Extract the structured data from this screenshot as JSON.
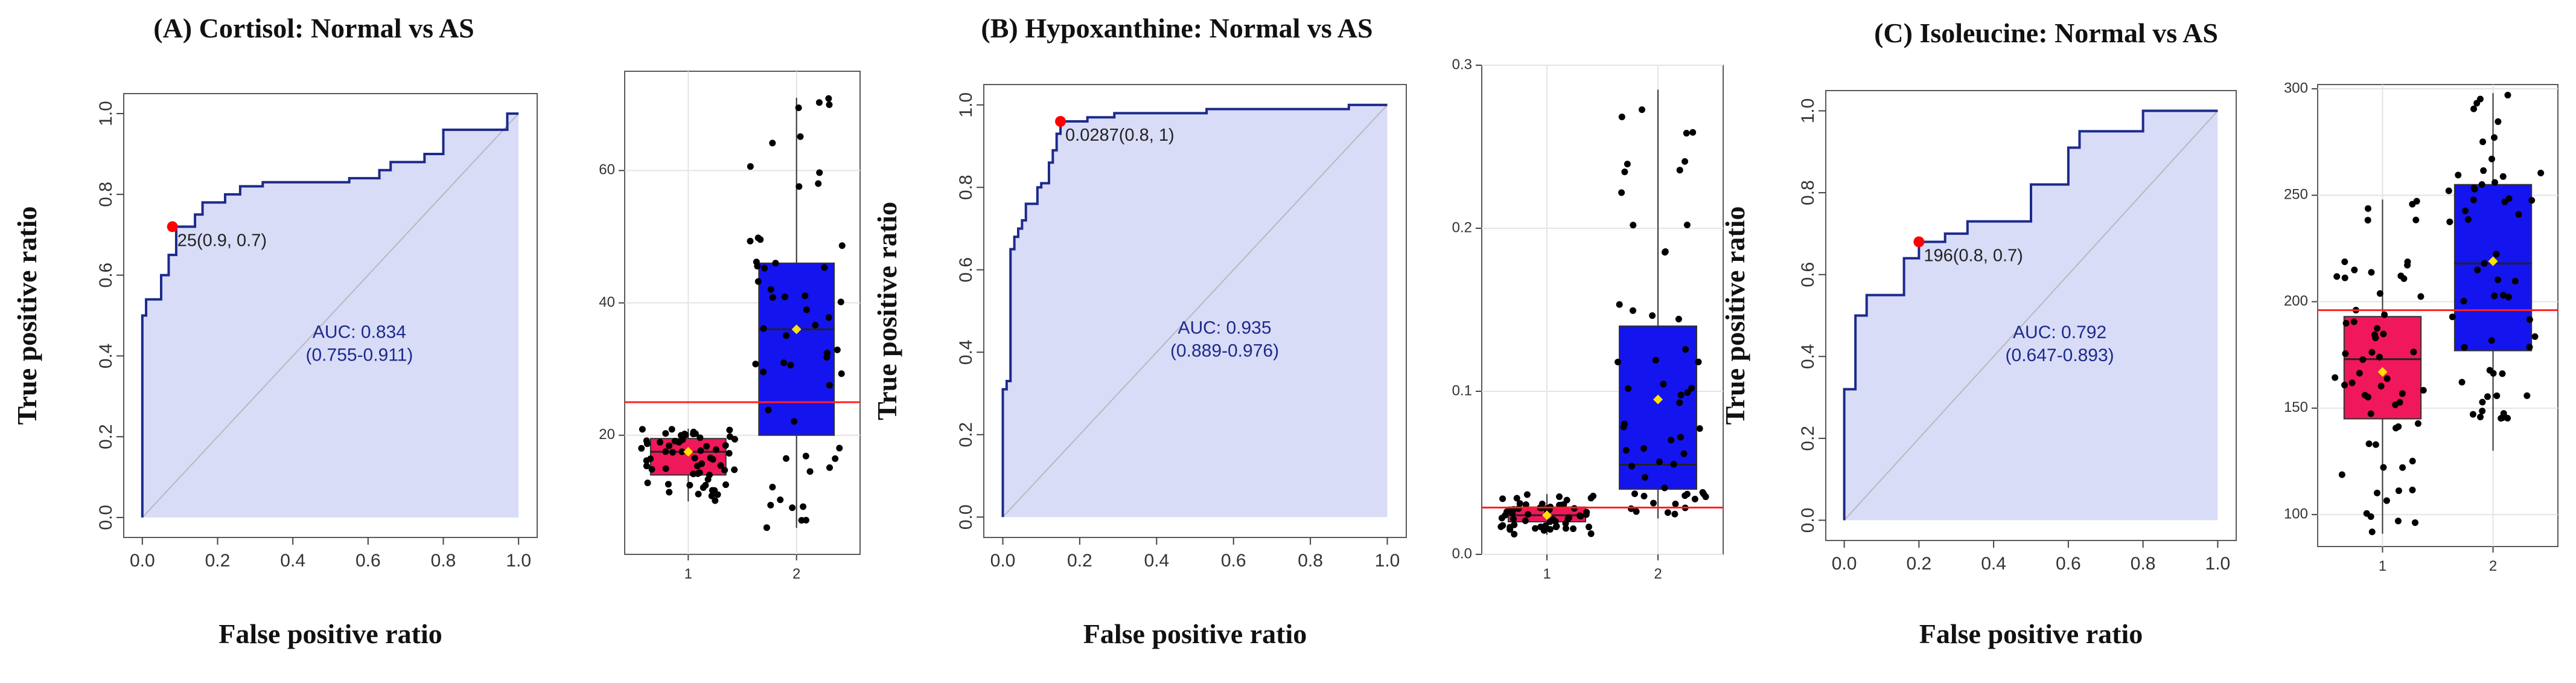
{
  "figure": {
    "roc_ylabel": "True positive ratio",
    "roc_xlabel": "False positive ratio",
    "colors": {
      "roc_line": "#1c2a8c",
      "roc_fill": "#d9dcf7",
      "diagonal": "#b9b9b9",
      "point": "#ff0000",
      "auc_text": "#1c2a8c",
      "box_group1": "#f0185a",
      "box_group2": "#1414ee",
      "cutoff_line": "#ff2020",
      "mean_marker": "#ffe000",
      "jitter": "#000000",
      "panel_border": "#5a5a5a",
      "box_grid": "#e4e4e4"
    }
  },
  "chart_data": [
    {
      "type": "line",
      "panel": "A",
      "title": "(A) Cortisol: Normal vs AS",
      "xlabel": "False positive ratio",
      "ylabel": "True positive ratio",
      "xlim": [
        0,
        1
      ],
      "ylim": [
        0,
        1
      ],
      "xticks": [
        "0.0",
        "0.2",
        "0.4",
        "0.6",
        "0.8",
        "1.0"
      ],
      "yticks": [
        "0.0",
        "0.2",
        "0.4",
        "0.6",
        "0.8",
        "1.0"
      ],
      "roc": [
        [
          0,
          0
        ],
        [
          0,
          0.5
        ],
        [
          0.01,
          0.5
        ],
        [
          0.01,
          0.54
        ],
        [
          0.05,
          0.54
        ],
        [
          0.05,
          0.6
        ],
        [
          0.07,
          0.6
        ],
        [
          0.07,
          0.65
        ],
        [
          0.09,
          0.65
        ],
        [
          0.09,
          0.72
        ],
        [
          0.14,
          0.72
        ],
        [
          0.14,
          0.75
        ],
        [
          0.16,
          0.75
        ],
        [
          0.16,
          0.78
        ],
        [
          0.22,
          0.78
        ],
        [
          0.22,
          0.8
        ],
        [
          0.26,
          0.8
        ],
        [
          0.26,
          0.82
        ],
        [
          0.32,
          0.82
        ],
        [
          0.32,
          0.83
        ],
        [
          0.55,
          0.83
        ],
        [
          0.55,
          0.84
        ],
        [
          0.63,
          0.84
        ],
        [
          0.63,
          0.86
        ],
        [
          0.66,
          0.86
        ],
        [
          0.66,
          0.88
        ],
        [
          0.75,
          0.88
        ],
        [
          0.75,
          0.9
        ],
        [
          0.8,
          0.9
        ],
        [
          0.8,
          0.96
        ],
        [
          0.97,
          0.96
        ],
        [
          0.97,
          1
        ],
        [
          1,
          1
        ]
      ],
      "cutoff_point": {
        "x": 0.08,
        "y": 0.72,
        "label": "25(0.9, 0.7)"
      },
      "auc_label": "AUC: 0.834",
      "auc_ci": "(0.755-0.911)",
      "boxplot": {
        "groups": [
          "1",
          "2"
        ],
        "yticks": [
          "20",
          "40",
          "60"
        ],
        "yrange": [
          2,
          75
        ],
        "cutoff": 25,
        "stats": [
          {
            "q1": 14,
            "median": 17.5,
            "q3": 19.5,
            "whisker_low": 10,
            "whisker_high": 21,
            "mean": 17.5
          },
          {
            "q1": 20,
            "median": 36,
            "q3": 46,
            "whisker_low": 6,
            "whisker_high": 71,
            "mean": 36
          }
        ]
      }
    },
    {
      "type": "line",
      "panel": "B",
      "title": "(B) Hypoxanthine: Normal vs AS",
      "xlabel": "False positive ratio",
      "ylabel": "True positive ratio",
      "xlim": [
        0,
        1
      ],
      "ylim": [
        0,
        1
      ],
      "xticks": [
        "0.0",
        "0.2",
        "0.4",
        "0.6",
        "0.8",
        "1.0"
      ],
      "yticks": [
        "0.0",
        "0.2",
        "0.4",
        "0.6",
        "0.8",
        "1.0"
      ],
      "roc": [
        [
          0,
          0
        ],
        [
          0,
          0.31
        ],
        [
          0.01,
          0.31
        ],
        [
          0.01,
          0.33
        ],
        [
          0.02,
          0.33
        ],
        [
          0.02,
          0.65
        ],
        [
          0.03,
          0.65
        ],
        [
          0.03,
          0.68
        ],
        [
          0.04,
          0.68
        ],
        [
          0.04,
          0.7
        ],
        [
          0.05,
          0.7
        ],
        [
          0.05,
          0.72
        ],
        [
          0.06,
          0.72
        ],
        [
          0.06,
          0.76
        ],
        [
          0.09,
          0.76
        ],
        [
          0.09,
          0.8
        ],
        [
          0.1,
          0.8
        ],
        [
          0.1,
          0.81
        ],
        [
          0.12,
          0.81
        ],
        [
          0.12,
          0.86
        ],
        [
          0.13,
          0.86
        ],
        [
          0.13,
          0.89
        ],
        [
          0.14,
          0.89
        ],
        [
          0.14,
          0.93
        ],
        [
          0.15,
          0.93
        ],
        [
          0.15,
          0.96
        ],
        [
          0.22,
          0.96
        ],
        [
          0.22,
          0.97
        ],
        [
          0.29,
          0.97
        ],
        [
          0.29,
          0.98
        ],
        [
          0.53,
          0.98
        ],
        [
          0.53,
          0.99
        ],
        [
          0.9,
          0.99
        ],
        [
          0.9,
          1
        ],
        [
          1,
          1
        ]
      ],
      "cutoff_point": {
        "x": 0.15,
        "y": 0.96,
        "label": "0.0287(0.8, 1)"
      },
      "auc_label": "AUC: 0.935",
      "auc_ci": "(0.889-0.976)",
      "boxplot": {
        "groups": [
          "1",
          "2"
        ],
        "yticks": [
          "0.0",
          "0.1",
          "0.2",
          "0.3"
        ],
        "yrange": [
          0,
          0.3
        ],
        "cutoff": 0.0287,
        "stats": [
          {
            "q1": 0.02,
            "median": 0.024,
            "q3": 0.029,
            "whisker_low": 0.012,
            "whisker_high": 0.037,
            "mean": 0.024
          },
          {
            "q1": 0.04,
            "median": 0.055,
            "q3": 0.14,
            "whisker_low": 0.022,
            "whisker_high": 0.285,
            "mean": 0.095
          }
        ]
      }
    },
    {
      "type": "line",
      "panel": "C",
      "title": "(C) Isoleucine: Normal vs AS",
      "xlabel": "False positive ratio",
      "ylabel": "True positive ratio",
      "xlim": [
        0,
        1
      ],
      "ylim": [
        0,
        1
      ],
      "xticks": [
        "0.0",
        "0.2",
        "0.4",
        "0.6",
        "0.8",
        "1.0"
      ],
      "yticks": [
        "0.0",
        "0.2",
        "0.4",
        "0.6",
        "0.8",
        "1.0"
      ],
      "roc": [
        [
          0,
          0
        ],
        [
          0,
          0.32
        ],
        [
          0.03,
          0.32
        ],
        [
          0.03,
          0.5
        ],
        [
          0.06,
          0.5
        ],
        [
          0.06,
          0.55
        ],
        [
          0.16,
          0.55
        ],
        [
          0.16,
          0.64
        ],
        [
          0.2,
          0.64
        ],
        [
          0.2,
          0.68
        ],
        [
          0.27,
          0.68
        ],
        [
          0.27,
          0.7
        ],
        [
          0.33,
          0.7
        ],
        [
          0.33,
          0.73
        ],
        [
          0.5,
          0.73
        ],
        [
          0.5,
          0.82
        ],
        [
          0.6,
          0.82
        ],
        [
          0.6,
          0.91
        ],
        [
          0.63,
          0.91
        ],
        [
          0.63,
          0.95
        ],
        [
          0.8,
          0.95
        ],
        [
          0.8,
          1
        ],
        [
          1,
          1
        ]
      ],
      "cutoff_point": {
        "x": 0.2,
        "y": 0.68,
        "label": "196(0.8, 0.7)"
      },
      "auc_label": "AUC: 0.792",
      "auc_ci": "(0.647-0.893)",
      "boxplot": {
        "groups": [
          "1",
          "2"
        ],
        "yticks": [
          "100",
          "150",
          "200",
          "250",
          "300"
        ],
        "yrange": [
          85,
          302
        ],
        "cutoff": 196,
        "stats": [
          {
            "q1": 145,
            "median": 173,
            "q3": 193,
            "whisker_low": 91,
            "whisker_high": 248,
            "mean": 167
          },
          {
            "q1": 177,
            "median": 218,
            "q3": 255,
            "whisker_low": 130,
            "whisker_high": 298,
            "mean": 219
          }
        ]
      }
    }
  ]
}
